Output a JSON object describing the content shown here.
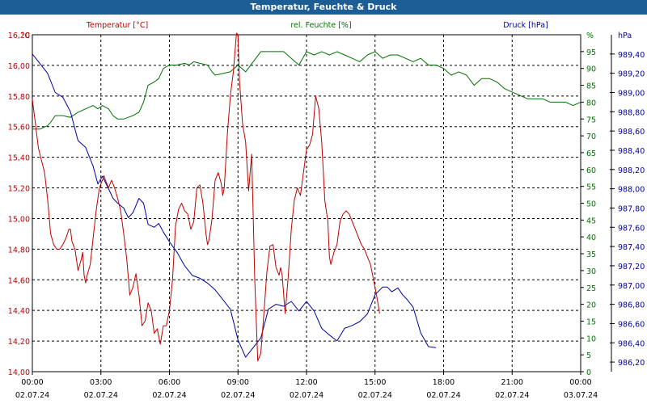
{
  "title": "Temperatur, Feuchte & Druck",
  "colors": {
    "title_bg": "#1c5d96",
    "temperature": "#c00000",
    "humidity": "#007000",
    "pressure": "#0000a0"
  },
  "chart_data": {
    "type": "line",
    "title": "Temperatur, Feuchte & Druck",
    "grid": true,
    "legend": "top, one label per axis",
    "x": {
      "range": [
        "02.07.24 00:00",
        "03.07.24 00:00"
      ],
      "ticks": [
        {
          "time": "00:00",
          "date": "02.07.24"
        },
        {
          "time": "03:00",
          "date": "02.07.24"
        },
        {
          "time": "06:00",
          "date": "02.07.24"
        },
        {
          "time": "09:00",
          "date": "02.07.24"
        },
        {
          "time": "12:00",
          "date": "02.07.24"
        },
        {
          "time": "15:00",
          "date": "02.07.24"
        },
        {
          "time": "18:00",
          "date": "02.07.24"
        },
        {
          "time": "21:00",
          "date": "02.07.24"
        },
        {
          "time": "00:00",
          "date": "03.07.24"
        }
      ]
    },
    "axes": {
      "left": {
        "unit": "°C",
        "label": "Temperatur [°C]",
        "range": [
          14.0,
          16.2
        ],
        "ticks": [
          "14,00",
          "14,20",
          "14,40",
          "14,60",
          "14,80",
          "15,00",
          "15,20",
          "15,40",
          "15,60",
          "15,80",
          "16,00",
          "16,20"
        ]
      },
      "right1": {
        "unit": "%",
        "label": "rel. Feuchte [%]",
        "range": [
          0,
          100
        ],
        "ticks": [
          "0",
          "5",
          "10",
          "15",
          "20",
          "25",
          "30",
          "35",
          "40",
          "45",
          "50",
          "55",
          "60",
          "65",
          "70",
          "75",
          "80",
          "85",
          "90",
          "95",
          "%"
        ]
      },
      "right2": {
        "unit": "hPa",
        "label": "Druck [hPa]",
        "range": [
          986.1,
          989.6
        ],
        "ticks": [
          "986,20",
          "986,40",
          "986,60",
          "986,80",
          "987,00",
          "987,20",
          "987,40",
          "987,60",
          "987,80",
          "988,00",
          "988,20",
          "988,40",
          "988,60",
          "988,80",
          "989,00",
          "989,20",
          "989,40",
          "hPa"
        ]
      }
    },
    "series": [
      {
        "name": "Temperatur [°C]",
        "axis": "left",
        "points": [
          [
            0,
            15.78
          ],
          [
            0.2,
            15.62
          ],
          [
            0.4,
            15.46
          ],
          [
            0.6,
            15.38
          ],
          [
            0.8,
            15.3
          ],
          [
            1.0,
            15.13
          ],
          [
            1.2,
            14.9
          ],
          [
            1.4,
            14.83
          ],
          [
            1.6,
            14.8
          ],
          [
            1.8,
            14.8
          ],
          [
            2.0,
            14.83
          ],
          [
            2.2,
            14.87
          ],
          [
            2.4,
            14.93
          ],
          [
            2.5,
            14.93
          ],
          [
            2.6,
            14.85
          ],
          [
            2.8,
            14.8
          ],
          [
            3.0,
            14.66
          ],
          [
            3.2,
            14.73
          ],
          [
            3.3,
            14.78
          ],
          [
            3.4,
            14.63
          ],
          [
            3.5,
            14.58
          ],
          [
            3.6,
            14.63
          ],
          [
            3.8,
            14.7
          ],
          [
            4.0,
            14.88
          ],
          [
            4.2,
            15.06
          ],
          [
            4.4,
            15.2
          ],
          [
            4.6,
            15.25
          ],
          [
            4.7,
            15.28
          ],
          [
            4.8,
            15.25
          ],
          [
            5.0,
            15.2
          ],
          [
            5.2,
            15.25
          ],
          [
            5.4,
            15.2
          ],
          [
            5.6,
            15.13
          ],
          [
            5.8,
            15.05
          ],
          [
            6.0,
            14.9
          ],
          [
            6.2,
            14.73
          ],
          [
            6.4,
            14.5
          ],
          [
            6.6,
            14.55
          ],
          [
            6.8,
            14.64
          ],
          [
            7.0,
            14.5
          ],
          [
            7.2,
            14.3
          ],
          [
            7.4,
            14.33
          ],
          [
            7.6,
            14.45
          ],
          [
            7.8,
            14.4
          ],
          [
            8.0,
            14.25
          ],
          [
            8.2,
            14.28
          ],
          [
            8.4,
            14.18
          ],
          [
            8.6,
            14.3
          ],
          [
            8.8,
            14.3
          ],
          [
            9.0,
            14.4
          ],
          [
            9.2,
            14.6
          ],
          [
            9.4,
            14.95
          ],
          [
            9.6,
            15.06
          ],
          [
            9.8,
            15.1
          ],
          [
            10.0,
            15.05
          ],
          [
            10.2,
            15.03
          ],
          [
            10.4,
            14.93
          ],
          [
            10.6,
            14.98
          ],
          [
            10.8,
            15.2
          ],
          [
            11.0,
            15.22
          ],
          [
            11.2,
            15.1
          ],
          [
            11.4,
            14.9
          ],
          [
            11.5,
            14.83
          ],
          [
            11.6,
            14.86
          ],
          [
            11.8,
            15.0
          ],
          [
            12.0,
            15.25
          ],
          [
            12.2,
            15.3
          ],
          [
            12.4,
            15.23
          ],
          [
            12.5,
            15.15
          ],
          [
            12.6,
            15.2
          ],
          [
            12.8,
            15.55
          ],
          [
            13.0,
            15.8
          ],
          [
            13.2,
            15.96
          ],
          [
            13.4,
            16.21
          ],
          [
            13.5,
            16.2
          ],
          [
            13.6,
            15.9
          ],
          [
            13.8,
            15.62
          ],
          [
            14.0,
            15.5
          ],
          [
            14.2,
            15.18
          ],
          [
            14.4,
            15.42
          ],
          [
            14.6,
            14.6
          ],
          [
            14.8,
            14.07
          ],
          [
            15.0,
            14.12
          ],
          [
            15.2,
            14.38
          ],
          [
            15.4,
            14.65
          ],
          [
            15.6,
            14.82
          ],
          [
            15.8,
            14.83
          ],
          [
            16.0,
            14.68
          ],
          [
            16.2,
            14.63
          ],
          [
            16.3,
            14.68
          ],
          [
            16.4,
            14.63
          ],
          [
            16.6,
            14.38
          ],
          [
            16.8,
            14.62
          ],
          [
            17.0,
            14.93
          ],
          [
            17.2,
            15.12
          ],
          [
            17.4,
            15.2
          ],
          [
            17.6,
            15.15
          ],
          [
            17.8,
            15.3
          ],
          [
            18.0,
            15.45
          ],
          [
            18.2,
            15.48
          ],
          [
            18.4,
            15.55
          ],
          [
            18.6,
            15.8
          ],
          [
            18.8,
            15.72
          ],
          [
            19.0,
            15.5
          ],
          [
            19.2,
            15.12
          ],
          [
            19.4,
            14.98
          ],
          [
            19.5,
            14.75
          ],
          [
            19.6,
            14.7
          ],
          [
            19.8,
            14.78
          ],
          [
            20.0,
            14.83
          ],
          [
            20.2,
            14.98
          ],
          [
            20.4,
            15.03
          ],
          [
            20.6,
            15.05
          ],
          [
            20.8,
            15.03
          ],
          [
            21.0,
            14.98
          ],
          [
            21.2,
            14.93
          ],
          [
            21.4,
            14.88
          ],
          [
            21.6,
            14.83
          ],
          [
            21.8,
            14.8
          ],
          [
            22.0,
            14.75
          ],
          [
            22.2,
            14.7
          ],
          [
            22.4,
            14.6
          ],
          [
            22.6,
            14.5
          ],
          [
            22.8,
            14.38
          ]
        ]
      },
      {
        "name": "rel. Feuchte [%]",
        "axis": "right1",
        "points": [
          [
            0,
            72
          ],
          [
            0.5,
            72
          ],
          [
            1.0,
            73
          ],
          [
            1.2,
            74
          ],
          [
            1.5,
            76
          ],
          [
            2.0,
            76
          ],
          [
            2.5,
            75.5
          ],
          [
            3.0,
            77
          ],
          [
            3.5,
            78
          ],
          [
            4.0,
            79
          ],
          [
            4.3,
            78
          ],
          [
            4.6,
            79
          ],
          [
            5.0,
            78
          ],
          [
            5.3,
            76
          ],
          [
            5.6,
            75
          ],
          [
            6.0,
            75
          ],
          [
            6.3,
            75.5
          ],
          [
            6.6,
            76
          ],
          [
            7.0,
            77
          ],
          [
            7.3,
            80
          ],
          [
            7.6,
            85
          ],
          [
            8.0,
            86
          ],
          [
            8.3,
            87
          ],
          [
            8.6,
            90
          ],
          [
            9.0,
            91
          ],
          [
            9.5,
            91
          ],
          [
            10.0,
            91.5
          ],
          [
            10.3,
            91
          ],
          [
            10.6,
            92
          ],
          [
            11.0,
            91.5
          ],
          [
            11.5,
            91
          ],
          [
            11.8,
            89
          ],
          [
            12.0,
            88
          ],
          [
            12.5,
            88.5
          ],
          [
            13.0,
            89
          ],
          [
            13.5,
            91
          ],
          [
            14.0,
            89
          ],
          [
            14.5,
            92
          ],
          [
            15.0,
            95
          ],
          [
            15.5,
            95
          ],
          [
            16.0,
            95
          ],
          [
            16.5,
            95
          ],
          [
            17.0,
            93
          ],
          [
            17.5,
            91
          ],
          [
            18.0,
            95
          ],
          [
            18.5,
            94
          ],
          [
            19.0,
            95
          ],
          [
            19.5,
            94
          ],
          [
            20.0,
            95
          ],
          [
            20.5,
            94
          ],
          [
            21.0,
            93
          ],
          [
            21.5,
            92
          ],
          [
            22.0,
            94
          ],
          [
            22.5,
            95
          ],
          [
            23.0,
            93
          ],
          [
            23.5,
            94
          ],
          [
            24.0,
            94
          ],
          [
            24.5,
            93
          ],
          [
            25.0,
            92
          ],
          [
            25.5,
            93
          ],
          [
            26.0,
            91
          ],
          [
            26.5,
            91
          ],
          [
            27.0,
            90
          ],
          [
            27.5,
            88
          ],
          [
            28.0,
            89
          ],
          [
            28.5,
            88
          ],
          [
            29.0,
            85
          ],
          [
            29.5,
            87
          ],
          [
            30.0,
            87
          ],
          [
            30.5,
            86
          ],
          [
            31.0,
            84
          ],
          [
            31.5,
            83
          ],
          [
            32.0,
            82
          ],
          [
            32.5,
            81
          ],
          [
            33.0,
            81
          ],
          [
            33.5,
            81
          ],
          [
            34.0,
            80
          ],
          [
            34.5,
            80
          ],
          [
            35.0,
            80
          ],
          [
            35.5,
            79
          ],
          [
            36.0,
            80
          ]
        ]
      },
      {
        "name": "Druck [hPa]",
        "axis": "right2",
        "points": [
          [
            0,
            989.4
          ],
          [
            0.5,
            989.3
          ],
          [
            1.0,
            989.2
          ],
          [
            1.5,
            989.0
          ],
          [
            2.0,
            988.95
          ],
          [
            2.5,
            988.8
          ],
          [
            3.0,
            988.5
          ],
          [
            3.5,
            988.43
          ],
          [
            4.0,
            988.23
          ],
          [
            4.3,
            988.05
          ],
          [
            4.6,
            988.13
          ],
          [
            5.0,
            988.0
          ],
          [
            5.3,
            987.9
          ],
          [
            5.6,
            987.85
          ],
          [
            6.0,
            987.8
          ],
          [
            6.3,
            987.7
          ],
          [
            6.6,
            987.75
          ],
          [
            7.0,
            987.9
          ],
          [
            7.3,
            987.85
          ],
          [
            7.6,
            987.63
          ],
          [
            8.0,
            987.6
          ],
          [
            8.3,
            987.64
          ],
          [
            8.6,
            987.55
          ],
          [
            9.0,
            987.45
          ],
          [
            9.5,
            987.34
          ],
          [
            10.0,
            987.2
          ],
          [
            10.5,
            987.1
          ],
          [
            11.0,
            987.07
          ],
          [
            11.5,
            987.02
          ],
          [
            12.0,
            986.95
          ],
          [
            12.5,
            986.85
          ],
          [
            13.0,
            986.75
          ],
          [
            13.5,
            986.43
          ],
          [
            14.0,
            986.25
          ],
          [
            14.5,
            986.35
          ],
          [
            15.0,
            986.45
          ],
          [
            15.5,
            986.75
          ],
          [
            16.0,
            986.8
          ],
          [
            16.5,
            986.78
          ],
          [
            17.0,
            986.83
          ],
          [
            17.5,
            986.73
          ],
          [
            18.0,
            986.83
          ],
          [
            18.5,
            986.73
          ],
          [
            19.0,
            986.55
          ],
          [
            19.5,
            986.48
          ],
          [
            20.0,
            986.42
          ],
          [
            20.5,
            986.55
          ],
          [
            21.0,
            986.58
          ],
          [
            21.5,
            986.62
          ],
          [
            22.0,
            986.7
          ],
          [
            22.5,
            986.9
          ],
          [
            23.0,
            986.98
          ],
          [
            23.3,
            986.98
          ],
          [
            23.6,
            986.93
          ],
          [
            24.0,
            986.97
          ],
          [
            24.3,
            986.9
          ],
          [
            24.6,
            986.85
          ],
          [
            25.0,
            986.77
          ],
          [
            25.5,
            986.5
          ],
          [
            26.0,
            986.36
          ],
          [
            26.5,
            986.35
          ]
        ]
      }
    ]
  }
}
